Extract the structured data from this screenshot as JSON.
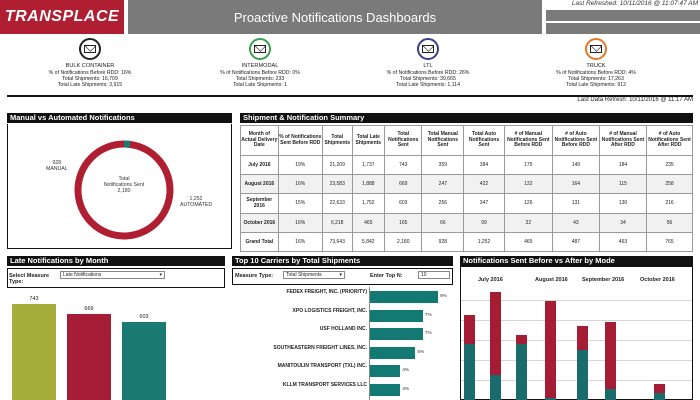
{
  "header": {
    "logo": "TRANSPLACE",
    "title": "Proactive Notifications Dashboards",
    "last_refreshed": "Last Refreshed: 10/11/2016 @ 11:07:47 AM"
  },
  "modes": [
    {
      "name": "BULK CONTAINER",
      "pct": "% of Notifications Before RDD: 16%",
      "shipments": "Total Shipments: 16,709",
      "late": "Total Late Shipments: 3,915",
      "color": "#222222",
      "icon": "envelope-icon"
    },
    {
      "name": "INTERMODAL",
      "pct": "% of Notifications Before RDD: 0%",
      "shipments": "Total Shipments: 233",
      "late": "Total Late Shipments: 1",
      "color": "#3aa04a",
      "icon": "envelope-icon"
    },
    {
      "name": "LTL",
      "pct": "% of Notifications Before RDD: 26%",
      "shipments": "Total Shipments: 39,665",
      "late": "Total Late Shipments: 1,114",
      "color": "#3b3f8c",
      "icon": "envelope-icon"
    },
    {
      "name": "TRUCK",
      "pct": "% of Notifications Before RDD: 4%",
      "shipments": "Total Shipments: 17,263",
      "late": "Total Late Shipments: 912",
      "color": "#e07a2a",
      "icon": "envelope-icon"
    }
  ],
  "last_data_refresh": "Last Data Refresh: 10/11/2016 @ 11:17 AM",
  "manual_vs_auto": {
    "title": "Manual vs Automated Notifications",
    "center_line1": "Total",
    "center_line2": "Notifications Sent",
    "center_value": "2,180",
    "manual_value": "928",
    "manual_label": "MANUAL",
    "auto_value": "1,252",
    "auto_label": "AUTOMATED",
    "manual_count": 928,
    "auto_count": 1252,
    "manual_color": "#1a7a72",
    "auto_color": "#b01e32"
  },
  "summary": {
    "title": "Shipment & Notification Summary",
    "headers": [
      "Month of Actual Delivery Date",
      "% of Notifications Sent Before RDD",
      "Total Shipments",
      "Total Late Shipments",
      "Total Notifications Sent",
      "Total Manual Notifications Sent",
      "Total Auto Notifications Sent",
      "# of Manual Notifications Sent Before RDD",
      "# of Auto Notifications Sent Before RDD",
      "# of Manual Notifications Sent After RDD",
      "# of Auto Notifications Sent After RDD"
    ],
    "rows": [
      [
        "July 2016",
        "19%",
        "21,209",
        "1,737",
        "743",
        "359",
        "384",
        "175",
        "149",
        "184",
        "235"
      ],
      [
        "August 2016",
        "16%",
        "23,583",
        "1,888",
        "669",
        "247",
        "422",
        "132",
        "164",
        "115",
        "258"
      ],
      [
        "September 2016",
        "15%",
        "22,633",
        "1,752",
        "603",
        "256",
        "347",
        "126",
        "131",
        "130",
        "216"
      ],
      [
        "October 2016",
        "16%",
        "6,218",
        "465",
        "165",
        "66",
        "99",
        "32",
        "43",
        "34",
        "56"
      ],
      [
        "Grand Total",
        "16%",
        "73,643",
        "5,842",
        "2,180",
        "928",
        "1,252",
        "465",
        "487",
        "463",
        "765"
      ]
    ]
  },
  "late_by_month": {
    "title": "Late Notifications by Month",
    "measure_label": "Select Measure Type:",
    "measure_value": "Late Notifications",
    "bars": [
      {
        "label": "743",
        "value": 743,
        "color": "#a7ad3b"
      },
      {
        "label": "669",
        "value": 669,
        "color": "#a51c35"
      },
      {
        "label": "603",
        "value": 603,
        "color": "#1a7a72"
      }
    ]
  },
  "top_carriers": {
    "title": "Top 10 Carriers by Total Shipments",
    "measure_label": "Measure Type:",
    "measure_value": "Total Shipments",
    "top_n_label": "Enter Top N:",
    "top_n_value": "10",
    "carriers": [
      {
        "name": "FEDEX FREIGHT, INC. (PRIORITY)",
        "value": 9,
        "label": "9%"
      },
      {
        "name": "XPO LOGISTICS FREIGHT, INC.",
        "value": 7,
        "label": "7%"
      },
      {
        "name": "USF HOLLAND INC.",
        "value": 7,
        "label": "7%"
      },
      {
        "name": "SOUTHEASTERN FREIGHT LINES, INC.",
        "value": 6,
        "label": "6%"
      },
      {
        "name": "MANITOULIN TRANSPORT (TXL) INC.",
        "value": 4,
        "label": "4%"
      },
      {
        "name": "KLLM TRANSPORT SERVICES LLC",
        "value": 4,
        "label": "4%"
      }
    ]
  },
  "before_after": {
    "title": "Notifications Sent Before vs After by Mode",
    "months": [
      "July 2016",
      "August 2016",
      "September 2016",
      "October 2016"
    ],
    "before_color": "#1a6b6b",
    "after_color": "#a51c35",
    "bars": [
      {
        "month": 0,
        "after": 0.26,
        "before": 0.5
      },
      {
        "month": 0,
        "after": 0.74,
        "before": 0.22
      },
      {
        "month": 1,
        "after": 0.08,
        "before": 0.5
      },
      {
        "month": 1,
        "after": 0.86,
        "before": 0.02
      },
      {
        "month": 2,
        "after": 0.21,
        "before": 0.45
      },
      {
        "month": 2,
        "after": 0.6,
        "before": 0.1
      },
      {
        "month": 3,
        "after": 0.08,
        "before": 0.06
      }
    ]
  }
}
